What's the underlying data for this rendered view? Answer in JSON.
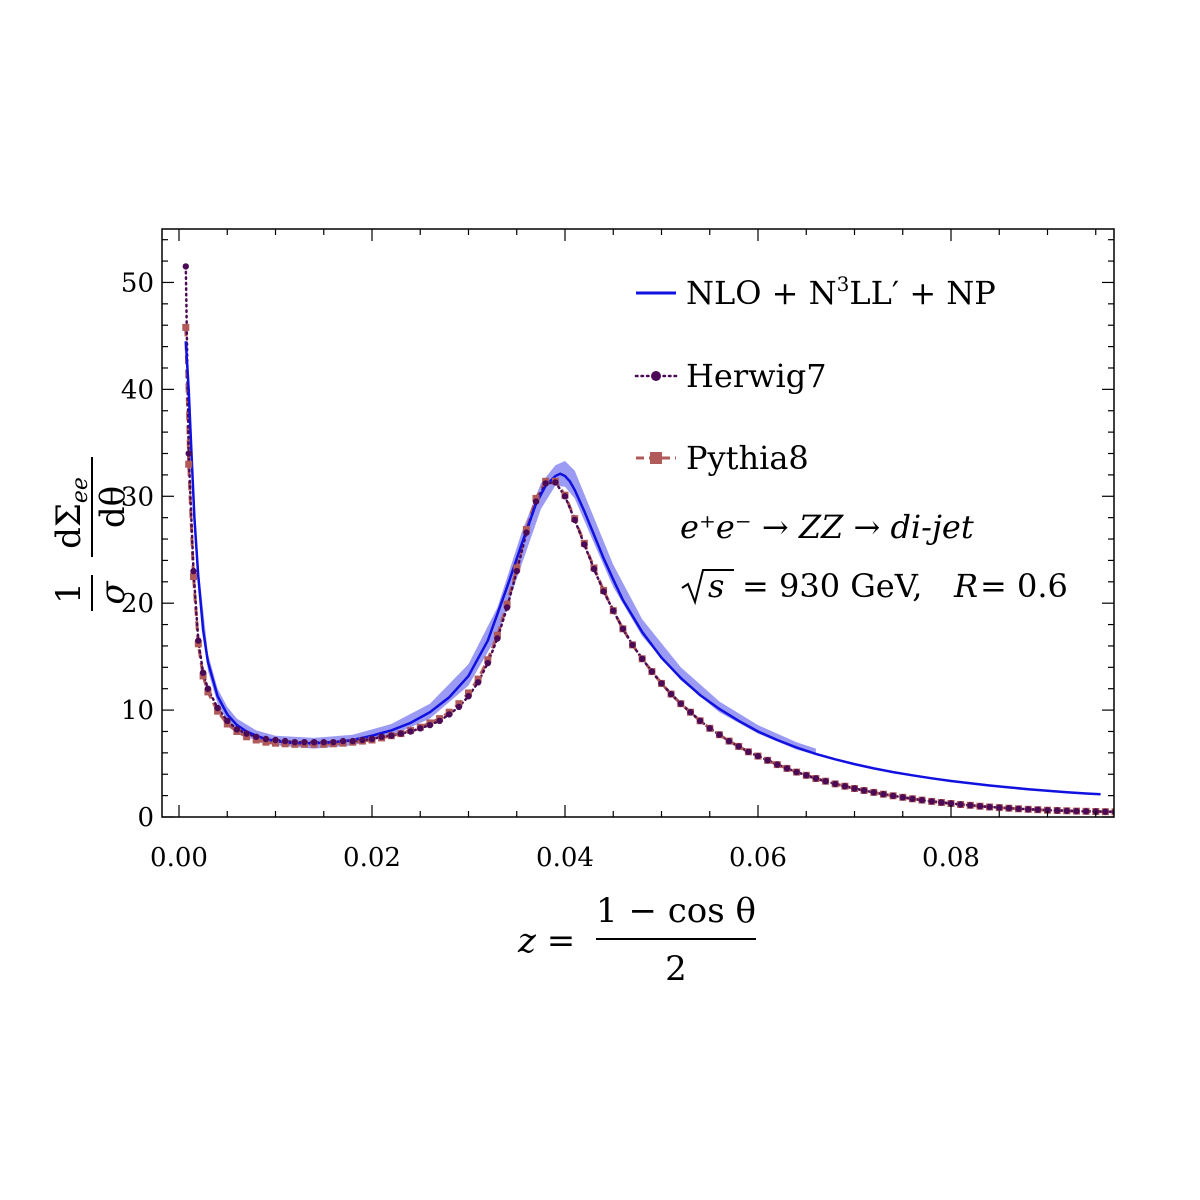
{
  "chart_data": {
    "type": "line",
    "xlim": [
      0.0,
      0.098
    ],
    "ylim": [
      0,
      55
    ],
    "xticks": [
      "0.00",
      "0.02",
      "0.04",
      "0.06",
      "0.08"
    ],
    "yticks": [
      "0",
      "10",
      "20",
      "30",
      "40",
      "50"
    ],
    "ylabel": {
      "numerator_left": "1",
      "denominator_left": "σ",
      "numerator_right": "dΣ",
      "numerator_sub": "ee",
      "denominator_right": "dθ"
    },
    "xlabel": {
      "lhs": "z =",
      "numerator": "1 − cos θ",
      "denominator": "2"
    },
    "legend": {
      "placement": "top-right",
      "entries": [
        {
          "parts": [
            "NLO + N",
            "3",
            "LL′ + NP"
          ]
        },
        {
          "label": "Herwig7"
        },
        {
          "label": "Pythia8"
        }
      ]
    },
    "annotation": {
      "line1": "e⁺e⁻ → ZZ → di-jet",
      "sqrt_s": "s",
      "line2_rest": "= 930 GeV,",
      "r_label": "R",
      "r_value": "= 0.6"
    },
    "colors": {
      "nlo": "#1010e0",
      "band": "#7a7af0",
      "herwig": "#4b0a55",
      "pythia": "#b05a5a"
    },
    "series": [
      {
        "name": "NLO + N3LL′ + NP",
        "style": "solid",
        "x": [
          0.0007,
          0.001,
          0.0013,
          0.0016,
          0.002,
          0.0025,
          0.003,
          0.004,
          0.005,
          0.006,
          0.007,
          0.008,
          0.009,
          0.01,
          0.012,
          0.014,
          0.016,
          0.018,
          0.02,
          0.022,
          0.024,
          0.026,
          0.028,
          0.03,
          0.032,
          0.034,
          0.0355,
          0.037,
          0.038,
          0.039,
          0.0395,
          0.04,
          0.0405,
          0.041,
          0.042,
          0.043,
          0.044,
          0.045,
          0.046,
          0.048,
          0.05,
          0.052,
          0.054,
          0.056,
          0.058,
          0.06,
          0.062,
          0.064,
          0.066,
          0.068,
          0.07,
          0.072,
          0.074,
          0.076,
          0.078,
          0.08,
          0.082,
          0.084,
          0.086,
          0.088,
          0.09,
          0.092,
          0.094,
          0.0955
        ],
        "y": [
          44.5,
          40.0,
          34.0,
          28.0,
          22.5,
          17.5,
          14.5,
          11.3,
          9.6,
          8.6,
          8.0,
          7.6,
          7.3,
          7.1,
          6.9,
          6.9,
          7.0,
          7.2,
          7.6,
          8.1,
          8.8,
          9.8,
          11.2,
          13.2,
          16.5,
          21.5,
          25.5,
          29.3,
          31.0,
          31.9,
          32.1,
          31.9,
          31.4,
          30.6,
          28.6,
          26.4,
          24.2,
          22.2,
          20.3,
          17.3,
          14.9,
          13.0,
          11.4,
          10.1,
          9.0,
          8.0,
          7.2,
          6.5,
          5.9,
          5.4,
          4.95,
          4.55,
          4.2,
          3.9,
          3.62,
          3.37,
          3.15,
          2.95,
          2.77,
          2.6,
          2.45,
          2.32,
          2.2,
          2.12
        ]
      },
      {
        "name": "Herwig7",
        "style": "dotted-markers",
        "x": [
          0.0007,
          0.001,
          0.0015,
          0.002,
          0.0025,
          0.003,
          0.004,
          0.005,
          0.006,
          0.007,
          0.008,
          0.009,
          0.01,
          0.011,
          0.012,
          0.013,
          0.014,
          0.015,
          0.016,
          0.017,
          0.018,
          0.019,
          0.02,
          0.021,
          0.022,
          0.023,
          0.024,
          0.025,
          0.026,
          0.027,
          0.028,
          0.029,
          0.03,
          0.031,
          0.032,
          0.033,
          0.034,
          0.035,
          0.036,
          0.037,
          0.038,
          0.039,
          0.04,
          0.041,
          0.042,
          0.043,
          0.044,
          0.045,
          0.046,
          0.047,
          0.048,
          0.049,
          0.05,
          0.051,
          0.052,
          0.053,
          0.054,
          0.055,
          0.056,
          0.057,
          0.058,
          0.059,
          0.06,
          0.061,
          0.062,
          0.063,
          0.064,
          0.065,
          0.066,
          0.067,
          0.068,
          0.069,
          0.07,
          0.071,
          0.072,
          0.073,
          0.074,
          0.075,
          0.076,
          0.077,
          0.078,
          0.079,
          0.08,
          0.081,
          0.082,
          0.083,
          0.084,
          0.085,
          0.086,
          0.087,
          0.088,
          0.089,
          0.09,
          0.091,
          0.092,
          0.093,
          0.094,
          0.095,
          0.096,
          0.097
        ],
        "y": [
          51.5,
          34.0,
          23.0,
          16.5,
          13.5,
          12.0,
          10.2,
          9.0,
          8.2,
          7.8,
          7.5,
          7.3,
          7.2,
          7.1,
          7.0,
          7.0,
          7.0,
          7.0,
          7.0,
          7.1,
          7.1,
          7.2,
          7.3,
          7.5,
          7.6,
          7.8,
          8.0,
          8.3,
          8.6,
          9.0,
          9.6,
          10.3,
          11.3,
          12.6,
          14.4,
          16.7,
          19.6,
          23.0,
          26.6,
          29.5,
          31.2,
          31.3,
          30.0,
          27.8,
          25.5,
          23.2,
          21.1,
          19.3,
          17.6,
          16.1,
          14.8,
          13.6,
          12.5,
          11.5,
          10.6,
          9.8,
          9.0,
          8.3,
          7.7,
          7.1,
          6.6,
          6.1,
          5.7,
          5.3,
          4.9,
          4.55,
          4.2,
          3.9,
          3.6,
          3.35,
          3.1,
          2.88,
          2.67,
          2.48,
          2.3,
          2.13,
          1.98,
          1.84,
          1.7,
          1.58,
          1.46,
          1.36,
          1.26,
          1.17,
          1.09,
          1.01,
          0.94,
          0.88,
          0.82,
          0.77,
          0.72,
          0.68,
          0.64,
          0.61,
          0.58,
          0.55,
          0.53,
          0.51,
          0.5,
          0.49
        ]
      },
      {
        "name": "Pythia8",
        "style": "dashed-markers",
        "x": [
          0.0007,
          0.001,
          0.0015,
          0.002,
          0.0025,
          0.003,
          0.004,
          0.005,
          0.006,
          0.007,
          0.008,
          0.009,
          0.01,
          0.011,
          0.012,
          0.013,
          0.014,
          0.015,
          0.016,
          0.017,
          0.018,
          0.019,
          0.02,
          0.021,
          0.022,
          0.023,
          0.024,
          0.025,
          0.026,
          0.027,
          0.028,
          0.029,
          0.03,
          0.031,
          0.032,
          0.033,
          0.034,
          0.035,
          0.036,
          0.037,
          0.038,
          0.039,
          0.04,
          0.041,
          0.042,
          0.043,
          0.044,
          0.045,
          0.046,
          0.047,
          0.048,
          0.049,
          0.05,
          0.051,
          0.052,
          0.053,
          0.054,
          0.055,
          0.056,
          0.057,
          0.058,
          0.059,
          0.06,
          0.061,
          0.062,
          0.063,
          0.064,
          0.065,
          0.066,
          0.067,
          0.068,
          0.069,
          0.07,
          0.071,
          0.072,
          0.073,
          0.074,
          0.075,
          0.076,
          0.077,
          0.078,
          0.079,
          0.08,
          0.081,
          0.082,
          0.083,
          0.084,
          0.085,
          0.086,
          0.087,
          0.088,
          0.089,
          0.09,
          0.091,
          0.092,
          0.093,
          0.094,
          0.095,
          0.096,
          0.097
        ],
        "y": [
          45.8,
          33.0,
          22.5,
          16.2,
          13.2,
          11.7,
          9.9,
          8.7,
          8.0,
          7.5,
          7.2,
          7.0,
          6.9,
          6.85,
          6.8,
          6.8,
          6.8,
          6.8,
          6.85,
          6.9,
          7.0,
          7.1,
          7.2,
          7.4,
          7.6,
          7.8,
          8.1,
          8.4,
          8.8,
          9.2,
          9.8,
          10.6,
          11.6,
          12.9,
          14.7,
          17.0,
          19.9,
          23.3,
          26.9,
          29.8,
          31.4,
          31.4,
          30.1,
          27.9,
          25.6,
          23.3,
          21.2,
          19.3,
          17.6,
          16.1,
          14.8,
          13.6,
          12.5,
          11.5,
          10.6,
          9.8,
          9.0,
          8.3,
          7.7,
          7.1,
          6.6,
          6.1,
          5.7,
          5.3,
          4.9,
          4.55,
          4.2,
          3.9,
          3.6,
          3.35,
          3.1,
          2.88,
          2.67,
          2.48,
          2.3,
          2.13,
          1.98,
          1.84,
          1.7,
          1.58,
          1.46,
          1.36,
          1.26,
          1.17,
          1.09,
          1.01,
          0.94,
          0.88,
          0.82,
          0.77,
          0.72,
          0.68,
          0.64,
          0.61,
          0.58,
          0.55,
          0.53,
          0.51,
          0.5,
          0.49
        ]
      }
    ],
    "band": {
      "name": "NLO uncertainty band",
      "x": [
        0.002,
        0.003,
        0.004,
        0.005,
        0.006,
        0.008,
        0.01,
        0.014,
        0.018,
        0.022,
        0.026,
        0.03,
        0.033,
        0.0355,
        0.0375,
        0.039,
        0.04,
        0.041,
        0.043,
        0.045,
        0.048,
        0.052,
        0.056,
        0.06,
        0.064,
        0.066
      ],
      "upper": [
        23.5,
        15.3,
        12.0,
        10.3,
        9.2,
        8.1,
        7.6,
        7.4,
        7.7,
        8.7,
        10.6,
        14.3,
        19.6,
        26.6,
        31.2,
        32.9,
        33.3,
        32.4,
        28.0,
        23.6,
        18.5,
        14.0,
        10.8,
        8.6,
        7.0,
        6.4
      ],
      "lower": [
        21.5,
        13.7,
        10.6,
        9.0,
        8.0,
        7.1,
        6.7,
        6.4,
        6.7,
        7.6,
        9.2,
        12.3,
        17.0,
        23.6,
        28.8,
        31.0,
        30.9,
        29.8,
        25.6,
        21.5,
        16.9,
        12.8,
        9.8,
        7.8,
        6.3,
        5.8
      ]
    }
  }
}
